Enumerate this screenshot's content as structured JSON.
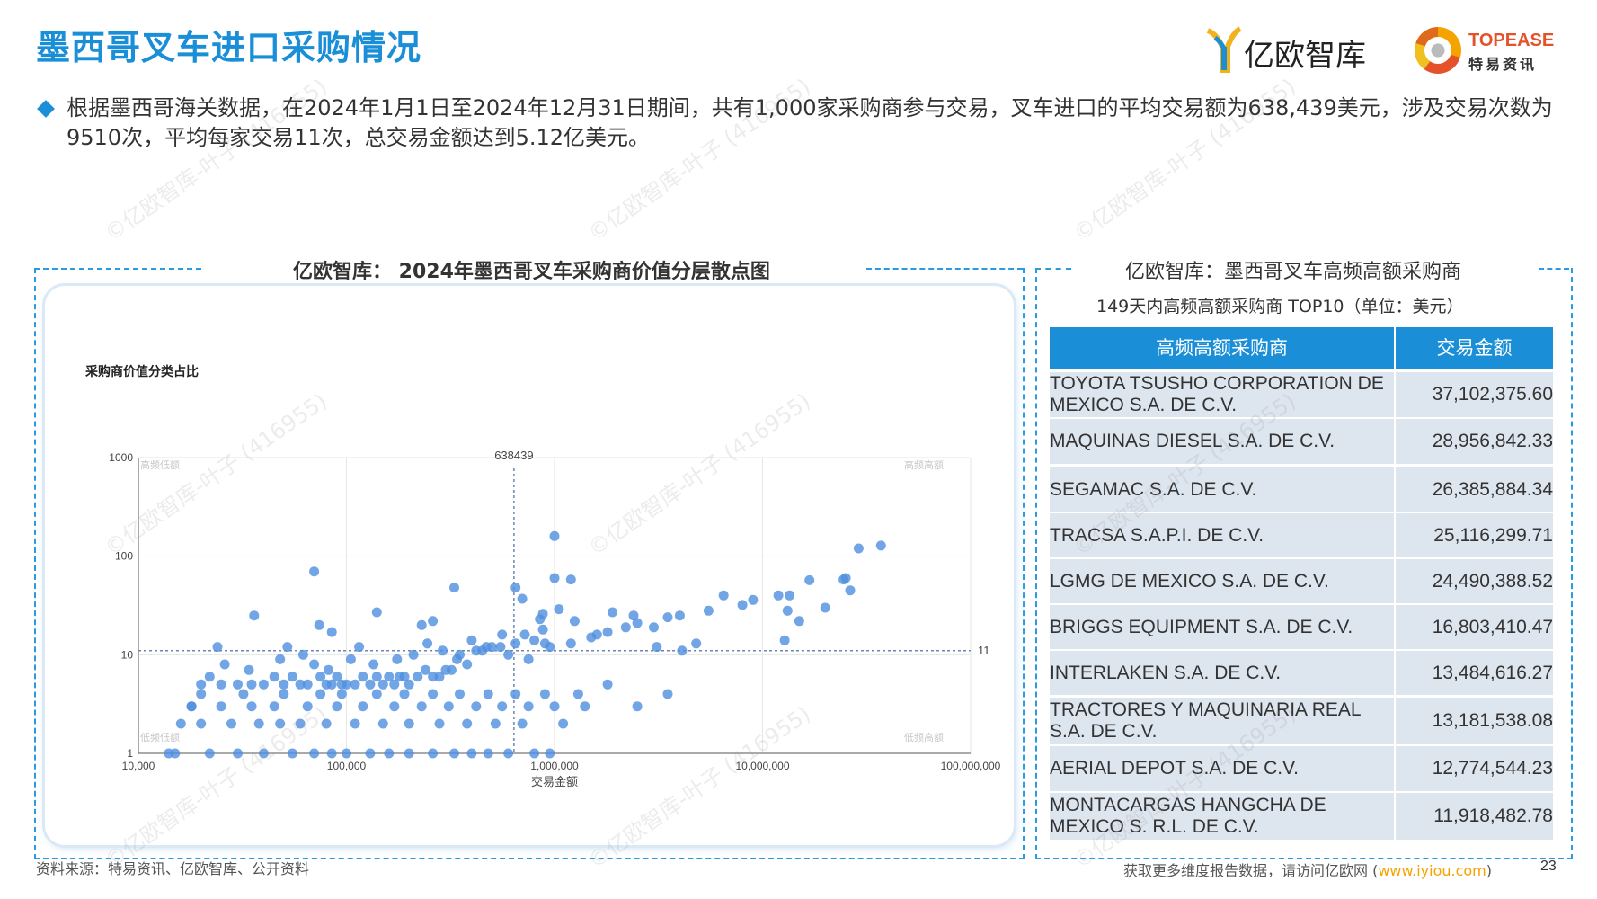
{
  "header": {
    "title": "墨西哥叉车进口采购情况",
    "logo_iyiou": "亿欧智库",
    "logo_topease_en": "TOPEASE",
    "logo_topease_cn": "特易资讯"
  },
  "summary": "根据墨西哥海关数据，在2024年1月1日至2024年12月31日期间，共有1,000家采购商参与交易，叉车进口的平均交易额为638,439美元，涉及交易次数为9510次，平均每家交易11次，总交易金额达到5.12亿美元。",
  "scatter_panel": {
    "title": "亿欧智库： 2024年墨西哥叉车采购商价值分层散点图",
    "inner_label": "采购商价值分类占比",
    "avg_x_label": "638439",
    "avg_y_label": "11",
    "quadrants": {
      "top_left": "高频低额",
      "top_right": "高频高额",
      "bottom_left": "低频低额",
      "bottom_right": "低频高额"
    }
  },
  "chart_data": {
    "type": "scatter",
    "title": "",
    "xlabel": "交易金额",
    "ylabel": "",
    "x_scale": "log",
    "y_scale": "log",
    "xlim": [
      10000,
      100000000
    ],
    "ylim": [
      1,
      1000
    ],
    "x_ticks": [
      "10,000",
      "100,000",
      "1,000,000",
      "10,000,000",
      "100,000,000"
    ],
    "y_ticks": [
      "1",
      "10",
      "100",
      "1000"
    ],
    "reference_lines": {
      "x": 638439,
      "y": 11
    },
    "grid": true,
    "color": "#4f8fde",
    "points": [
      [
        37102375,
        128
      ],
      [
        28956842,
        120
      ],
      [
        26385884,
        45
      ],
      [
        25116299,
        60
      ],
      [
        24490388,
        58
      ],
      [
        16803410,
        57
      ],
      [
        13484616,
        40
      ],
      [
        13181538,
        28
      ],
      [
        12774544,
        14
      ],
      [
        11918482,
        40
      ],
      [
        20000000,
        30
      ],
      [
        15000000,
        22
      ],
      [
        9000000,
        36
      ],
      [
        8000000,
        32
      ],
      [
        6500000,
        40
      ],
      [
        5500000,
        28
      ],
      [
        4800000,
        13
      ],
      [
        4000000,
        25
      ],
      [
        3500000,
        24
      ],
      [
        3000000,
        19
      ],
      [
        2500000,
        21
      ],
      [
        2200000,
        19
      ],
      [
        1800000,
        17
      ],
      [
        1500000,
        15
      ],
      [
        1200000,
        13
      ],
      [
        1000000,
        60
      ],
      [
        950000,
        12
      ],
      [
        900000,
        13
      ],
      [
        850000,
        23
      ],
      [
        800000,
        14
      ],
      [
        750000,
        9
      ],
      [
        700000,
        37
      ],
      [
        650000,
        13
      ],
      [
        600000,
        10
      ],
      [
        550000,
        12
      ],
      [
        500000,
        12
      ],
      [
        450000,
        11
      ],
      [
        420000,
        11
      ],
      [
        380000,
        8
      ],
      [
        350000,
        10
      ],
      [
        320000,
        7
      ],
      [
        300000,
        7
      ],
      [
        280000,
        6
      ],
      [
        260000,
        6
      ],
      [
        240000,
        7
      ],
      [
        220000,
        6
      ],
      [
        200000,
        5
      ],
      [
        190000,
        6
      ],
      [
        180000,
        6
      ],
      [
        170000,
        5
      ],
      [
        160000,
        6
      ],
      [
        150000,
        5
      ],
      [
        140000,
        6
      ],
      [
        130000,
        5
      ],
      [
        120000,
        6
      ],
      [
        110000,
        5
      ],
      [
        100000,
        5
      ],
      [
        95000,
        5
      ],
      [
        90000,
        6
      ],
      [
        85000,
        5
      ],
      [
        80000,
        5
      ],
      [
        75000,
        6
      ],
      [
        70000,
        8
      ],
      [
        65000,
        5
      ],
      [
        60000,
        5
      ],
      [
        55000,
        6
      ],
      [
        50000,
        5
      ],
      [
        45000,
        6
      ],
      [
        40000,
        5
      ],
      [
        35000,
        5
      ],
      [
        30000,
        5
      ],
      [
        25000,
        5
      ],
      [
        20000,
        5
      ],
      [
        18000,
        3
      ],
      [
        16000,
        2
      ],
      [
        15000,
        1
      ],
      [
        14000,
        1
      ],
      [
        22000,
        1
      ],
      [
        30000,
        1
      ],
      [
        40000,
        1
      ],
      [
        55000,
        1
      ],
      [
        70000,
        1
      ],
      [
        85000,
        1
      ],
      [
        100000,
        1
      ],
      [
        130000,
        1
      ],
      [
        160000,
        1
      ],
      [
        200000,
        1
      ],
      [
        260000,
        1
      ],
      [
        330000,
        1
      ],
      [
        400000,
        1
      ],
      [
        480000,
        1
      ],
      [
        600000,
        1
      ],
      [
        800000,
        1
      ],
      [
        950000,
        1
      ],
      [
        20000,
        2
      ],
      [
        28000,
        2
      ],
      [
        38000,
        2
      ],
      [
        48000,
        2
      ],
      [
        60000,
        2
      ],
      [
        80000,
        2
      ],
      [
        110000,
        2
      ],
      [
        150000,
        2
      ],
      [
        200000,
        2
      ],
      [
        280000,
        2
      ],
      [
        380000,
        2
      ],
      [
        520000,
        2
      ],
      [
        700000,
        2
      ],
      [
        1100000,
        2
      ],
      [
        18000,
        3
      ],
      [
        25000,
        3
      ],
      [
        35000,
        3
      ],
      [
        45000,
        3
      ],
      [
        65000,
        3
      ],
      [
        90000,
        3
      ],
      [
        120000,
        3
      ],
      [
        170000,
        3
      ],
      [
        230000,
        3
      ],
      [
        310000,
        3
      ],
      [
        420000,
        3
      ],
      [
        560000,
        3
      ],
      [
        750000,
        3
      ],
      [
        1000000,
        3
      ],
      [
        1400000,
        3
      ],
      [
        20000,
        4
      ],
      [
        32000,
        4
      ],
      [
        50000,
        4
      ],
      [
        75000,
        4
      ],
      [
        95000,
        4
      ],
      [
        140000,
        4
      ],
      [
        190000,
        4
      ],
      [
        260000,
        4
      ],
      [
        350000,
        4
      ],
      [
        480000,
        4
      ],
      [
        650000,
        4
      ],
      [
        900000,
        4
      ],
      [
        1300000,
        4
      ],
      [
        1800000,
        5
      ],
      [
        2500000,
        3
      ],
      [
        3500000,
        4
      ],
      [
        22000,
        6
      ],
      [
        26000,
        8
      ],
      [
        34000,
        7
      ],
      [
        48000,
        9
      ],
      [
        52000,
        12
      ],
      [
        62000,
        10
      ],
      [
        82000,
        7
      ],
      [
        105000,
        9
      ],
      [
        115000,
        12
      ],
      [
        135000,
        8
      ],
      [
        175000,
        9
      ],
      [
        210000,
        10
      ],
      [
        245000,
        13
      ],
      [
        290000,
        11
      ],
      [
        340000,
        9
      ],
      [
        400000,
        14
      ],
      [
        470000,
        12
      ],
      [
        560000,
        16
      ],
      [
        720000,
        16
      ],
      [
        880000,
        26
      ],
      [
        1050000,
        29
      ],
      [
        1250000,
        22
      ],
      [
        1600000,
        16
      ],
      [
        1900000,
        27
      ],
      [
        2400000,
        25
      ],
      [
        3100000,
        12
      ],
      [
        4100000,
        11
      ],
      [
        24000,
        12
      ],
      [
        36000,
        25
      ],
      [
        74000,
        20
      ],
      [
        85000,
        17
      ],
      [
        140000,
        27
      ],
      [
        230000,
        20
      ],
      [
        260000,
        22
      ],
      [
        330000,
        48
      ],
      [
        650000,
        48
      ],
      [
        880000,
        18
      ],
      [
        1000000,
        160
      ],
      [
        1200000,
        58
      ],
      [
        70000,
        70
      ]
    ]
  },
  "table_panel": {
    "title": "亿欧智库：墨西哥叉车高频高额采购商",
    "subtitle": "149天内高频高额采购商 TOP10（单位：美元）",
    "headers": [
      "高频高额采购商",
      "交易金额"
    ],
    "rows": [
      {
        "name": "TOYOTA TSUSHO CORPORATION DE MEXICO S.A. DE C.V.",
        "value": "37,102,375.60"
      },
      {
        "name": "MAQUINAS DIESEL S.A. DE C.V.",
        "value": "28,956,842.33"
      },
      {
        "name": "SEGAMAC S.A. DE C.V.",
        "value": "26,385,884.34"
      },
      {
        "name": "TRACSA S.A.P.I. DE C.V.",
        "value": "25,116,299.71"
      },
      {
        "name": "LGMG DE MEXICO S.A. DE C.V.",
        "value": "24,490,388.52"
      },
      {
        "name": "BRIGGS EQUIPMENT S.A. DE C.V.",
        "value": "16,803,410.47"
      },
      {
        "name": "INTERLAKEN S.A. DE C.V.",
        "value": "13,484,616.27"
      },
      {
        "name": "TRACTORES Y MAQUINARIA REAL S.A. DE C.V.",
        "value": "13,181,538.08"
      },
      {
        "name": "AERIAL DEPOT S.A. DE C.V.",
        "value": "12,774,544.23"
      },
      {
        "name": "MONTACARGAS HANGCHA DE MEXICO S. R.L. DE C.V.",
        "value": "11,918,482.78"
      }
    ]
  },
  "footer": {
    "source": "资料来源：特易资讯、亿欧智库、公开资料",
    "more_prefix": "获取更多维度报告数据，请访问亿欧网 (",
    "link": "www.iyiou.com",
    "more_suffix": ")",
    "page": "23"
  },
  "watermark": "©亿欧智库-叶子 (416955)"
}
